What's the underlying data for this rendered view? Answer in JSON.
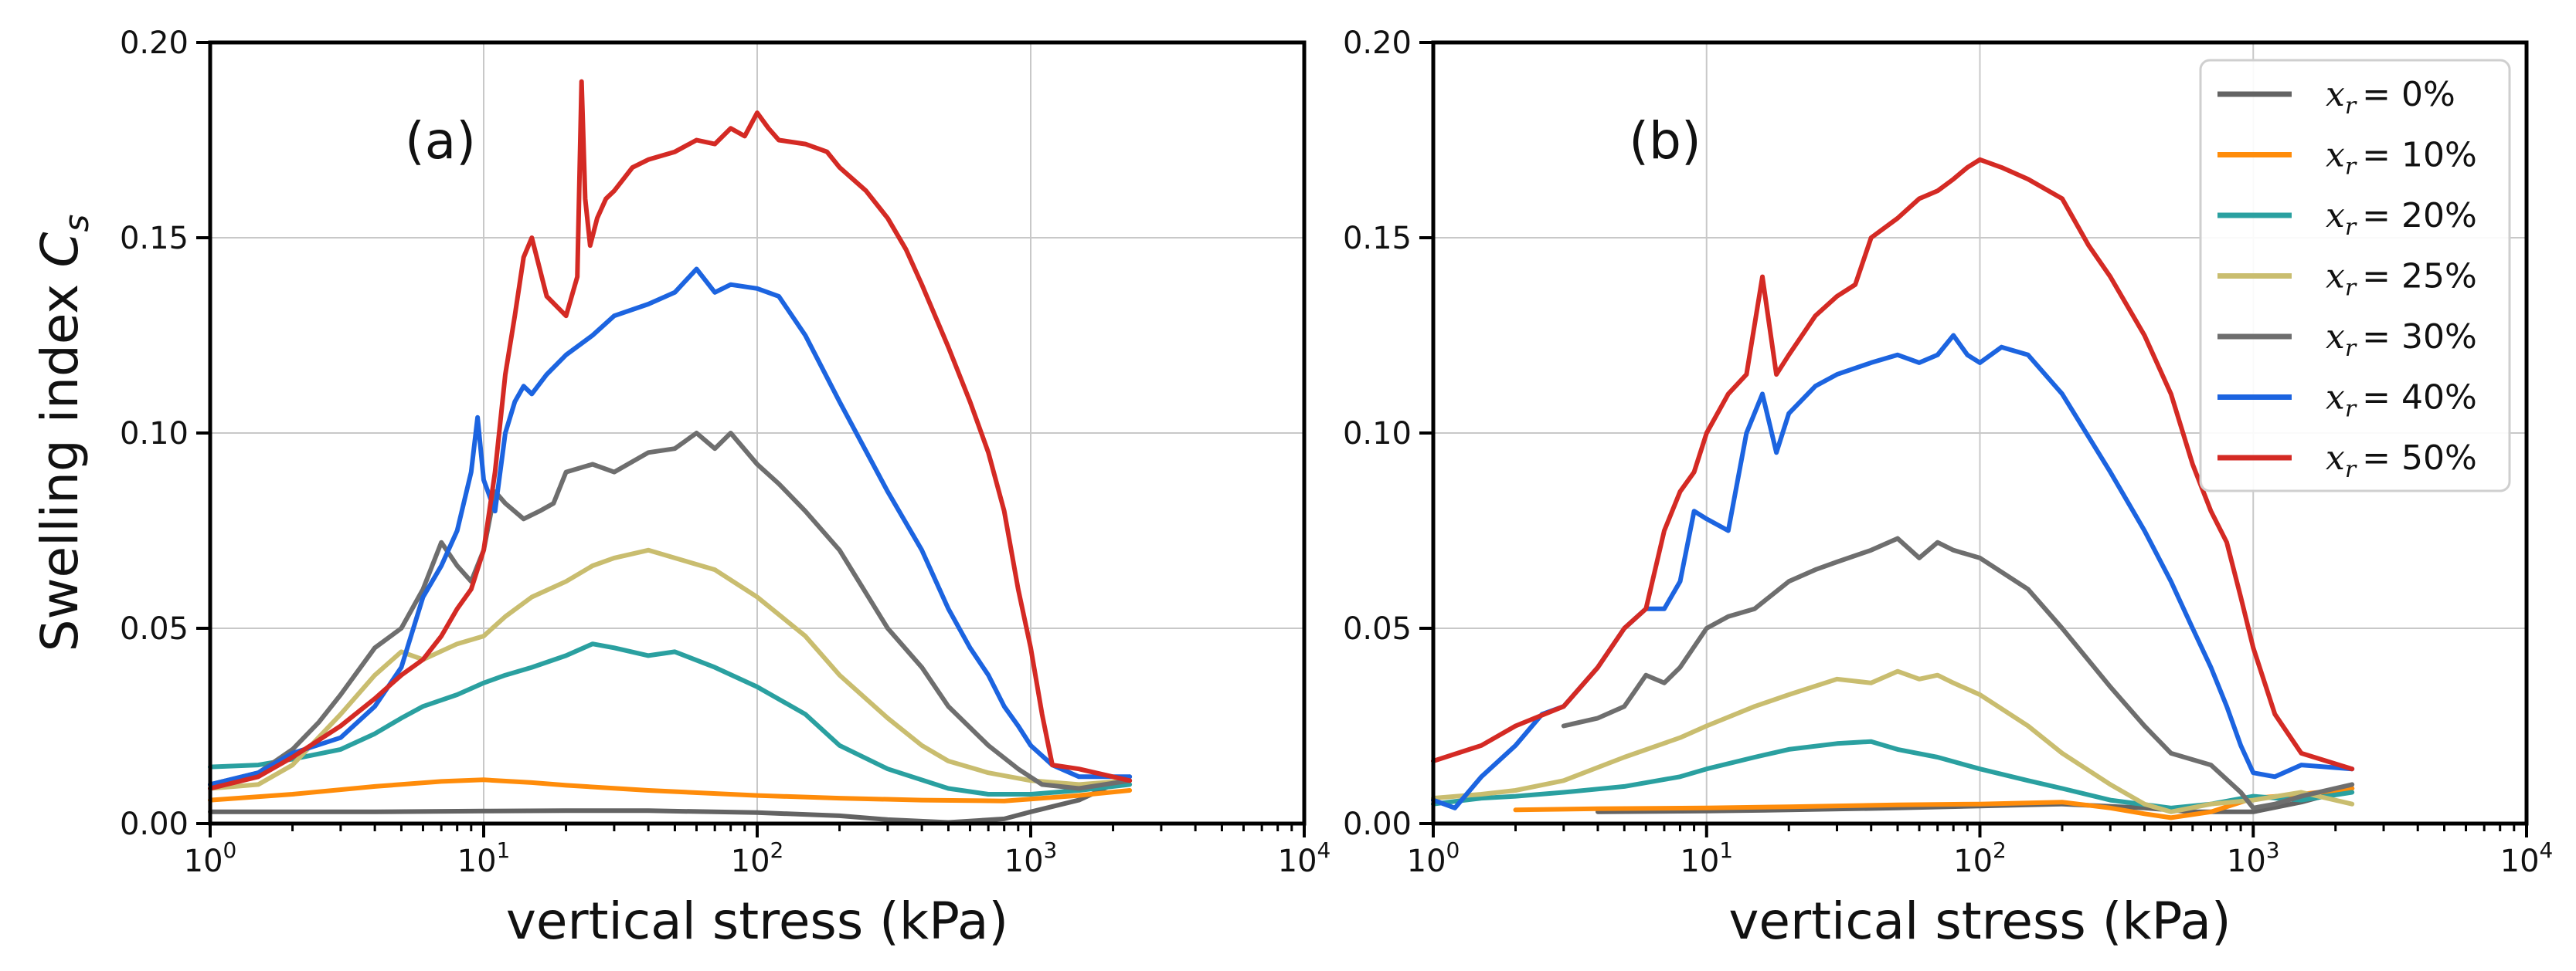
{
  "chart_data": [
    {
      "type": "line",
      "panel_label": "(a)",
      "xlabel": "vertical stress (kPa)",
      "ylabel": "Swelling index",
      "ylabel_symbol": "C",
      "ylabel_subscript": "s",
      "xscale": "log",
      "xlim": [
        1,
        10000
      ],
      "ylim": [
        0,
        0.2
      ],
      "grid": true,
      "x_ticks": [
        {
          "base": "10",
          "exp": "0"
        },
        {
          "base": "10",
          "exp": "1"
        },
        {
          "base": "10",
          "exp": "2"
        },
        {
          "base": "10",
          "exp": "3"
        },
        {
          "base": "10",
          "exp": "4"
        }
      ],
      "y_ticks": [
        "0.00",
        "0.05",
        "0.10",
        "0.15",
        "0.20"
      ],
      "series": [
        {
          "name": "x_r = 0%",
          "color": "#636363",
          "x": [
            1,
            2,
            4,
            10,
            20,
            40,
            100,
            200,
            300,
            500,
            800,
            1000,
            1500,
            2300
          ],
          "y": [
            0.003,
            0.003,
            0.003,
            0.0032,
            0.0033,
            0.0033,
            0.0028,
            0.002,
            0.001,
            0.0003,
            0.0012,
            0.003,
            0.006,
            0.012
          ]
        },
        {
          "name": "x_r = 10%",
          "color": "#ff8c0a",
          "x": [
            1,
            2,
            4,
            7,
            10,
            15,
            20,
            40,
            100,
            200,
            400,
            800,
            1500,
            2300
          ],
          "y": [
            0.006,
            0.0075,
            0.0095,
            0.0108,
            0.0112,
            0.0105,
            0.0098,
            0.0085,
            0.0072,
            0.0065,
            0.006,
            0.0058,
            0.0072,
            0.0085
          ]
        },
        {
          "name": "x_r = 20%",
          "color": "#2aa0a0",
          "x": [
            1,
            1.5,
            2,
            3,
            4,
            5,
            6,
            8,
            10,
            12,
            15,
            20,
            25,
            30,
            40,
            50,
            70,
            100,
            150,
            200,
            300,
            500,
            700,
            1000,
            1500,
            2300
          ],
          "y": [
            0.0145,
            0.015,
            0.0165,
            0.019,
            0.023,
            0.027,
            0.03,
            0.033,
            0.036,
            0.038,
            0.04,
            0.043,
            0.046,
            0.045,
            0.043,
            0.044,
            0.04,
            0.035,
            0.028,
            0.02,
            0.014,
            0.009,
            0.0075,
            0.0075,
            0.0085,
            0.01
          ]
        },
        {
          "name": "x_r = 25%",
          "color": "#c9bd6f",
          "x": [
            1,
            1.5,
            2,
            3,
            4,
            5,
            6,
            8,
            10,
            12,
            15,
            20,
            25,
            30,
            40,
            50,
            70,
            100,
            150,
            200,
            300,
            400,
            500,
            700,
            1000,
            1500,
            2300
          ],
          "y": [
            0.009,
            0.01,
            0.015,
            0.028,
            0.038,
            0.044,
            0.042,
            0.046,
            0.048,
            0.053,
            0.058,
            0.062,
            0.066,
            0.068,
            0.07,
            0.068,
            0.065,
            0.058,
            0.048,
            0.038,
            0.027,
            0.02,
            0.016,
            0.013,
            0.011,
            0.01,
            0.011
          ]
        },
        {
          "name": "x_r = 30%",
          "color": "#6e6e6e",
          "x": [
            1,
            1.5,
            2,
            2.5,
            3,
            4,
            5,
            6,
            7,
            8,
            9,
            10,
            11,
            12,
            14,
            16,
            18,
            20,
            25,
            30,
            40,
            50,
            60,
            70,
            80,
            100,
            120,
            150,
            200,
            300,
            400,
            500,
            700,
            900,
            1100,
            1500,
            2300
          ],
          "y": [
            0.01,
            0.013,
            0.019,
            0.026,
            0.033,
            0.045,
            0.05,
            0.06,
            0.072,
            0.066,
            0.062,
            0.07,
            0.085,
            0.082,
            0.078,
            0.08,
            0.082,
            0.09,
            0.092,
            0.09,
            0.095,
            0.096,
            0.1,
            0.096,
            0.1,
            0.092,
            0.087,
            0.08,
            0.07,
            0.05,
            0.04,
            0.03,
            0.02,
            0.014,
            0.01,
            0.009,
            0.011
          ]
        },
        {
          "name": "x_r = 40%",
          "color": "#1c64e0",
          "x": [
            1,
            1.5,
            2,
            3,
            4,
            5,
            6,
            7,
            8,
            9,
            9.5,
            10,
            11,
            12,
            13,
            14,
            15,
            17,
            20,
            25,
            30,
            40,
            50,
            60,
            70,
            80,
            100,
            120,
            150,
            200,
            300,
            400,
            500,
            600,
            700,
            800,
            900,
            1000,
            1200,
            1500,
            2300
          ],
          "y": [
            0.01,
            0.013,
            0.018,
            0.022,
            0.03,
            0.04,
            0.058,
            0.066,
            0.075,
            0.09,
            0.104,
            0.088,
            0.08,
            0.1,
            0.108,
            0.112,
            0.11,
            0.115,
            0.12,
            0.125,
            0.13,
            0.133,
            0.136,
            0.142,
            0.136,
            0.138,
            0.137,
            0.135,
            0.125,
            0.108,
            0.085,
            0.07,
            0.055,
            0.045,
            0.038,
            0.03,
            0.025,
            0.02,
            0.015,
            0.012,
            0.012
          ]
        },
        {
          "name": "x_r = 50%",
          "color": "#d42a24",
          "x": [
            1,
            1.5,
            2,
            3,
            4,
            5,
            6,
            7,
            8,
            9,
            10,
            11,
            12,
            13,
            14,
            15,
            17,
            20,
            22,
            22.8,
            23.5,
            24.5,
            26,
            28,
            30,
            35,
            40,
            50,
            60,
            70,
            80,
            90,
            100,
            110,
            120,
            150,
            180,
            200,
            250,
            300,
            350,
            400,
            500,
            600,
            700,
            800,
            900,
            1000,
            1100,
            1200,
            1500,
            2300
          ],
          "y": [
            0.009,
            0.012,
            0.017,
            0.025,
            0.032,
            0.038,
            0.042,
            0.048,
            0.055,
            0.06,
            0.07,
            0.09,
            0.115,
            0.13,
            0.145,
            0.15,
            0.135,
            0.13,
            0.14,
            0.19,
            0.16,
            0.148,
            0.155,
            0.16,
            0.162,
            0.168,
            0.17,
            0.172,
            0.175,
            0.174,
            0.178,
            0.176,
            0.182,
            0.178,
            0.175,
            0.174,
            0.172,
            0.168,
            0.162,
            0.155,
            0.147,
            0.138,
            0.122,
            0.108,
            0.095,
            0.08,
            0.06,
            0.045,
            0.028,
            0.015,
            0.014,
            0.011
          ]
        }
      ]
    },
    {
      "type": "line",
      "panel_label": "(b)",
      "xlabel": "vertical stress (kPa)",
      "xscale": "log",
      "xlim": [
        1,
        10000
      ],
      "ylim": [
        0,
        0.2
      ],
      "grid": true,
      "legend": "top-right",
      "x_ticks": [
        {
          "base": "10",
          "exp": "0"
        },
        {
          "base": "10",
          "exp": "1"
        },
        {
          "base": "10",
          "exp": "2"
        },
        {
          "base": "10",
          "exp": "3"
        },
        {
          "base": "10",
          "exp": "4"
        }
      ],
      "y_ticks": [
        "0.00",
        "0.05",
        "0.10",
        "0.15",
        "0.20"
      ],
      "series": [
        {
          "name": "x_r = 0%",
          "color": "#636363",
          "x": [
            4,
            10,
            20,
            50,
            100,
            200,
            400,
            600,
            1000,
            1500,
            2300
          ],
          "y": [
            0.003,
            0.0032,
            0.0035,
            0.004,
            0.0045,
            0.005,
            0.004,
            0.003,
            0.003,
            0.0055,
            0.009
          ]
        },
        {
          "name": "x_r = 10%",
          "color": "#ff8c0a",
          "x": [
            2,
            4,
            10,
            20,
            50,
            100,
            200,
            300,
            400,
            500,
            700,
            1000,
            1500,
            2300
          ],
          "y": [
            0.0035,
            0.0038,
            0.004,
            0.0043,
            0.0048,
            0.005,
            0.0055,
            0.004,
            0.0025,
            0.0015,
            0.003,
            0.0065,
            0.0075,
            0.009
          ]
        },
        {
          "name": "x_r = 20%",
          "color": "#2aa0a0",
          "x": [
            1,
            1.5,
            2,
            3,
            5,
            8,
            10,
            15,
            20,
            30,
            40,
            50,
            70,
            100,
            150,
            200,
            300,
            500,
            700,
            1000,
            1500,
            2300
          ],
          "y": [
            0.005,
            0.0065,
            0.007,
            0.008,
            0.0095,
            0.012,
            0.014,
            0.017,
            0.019,
            0.0205,
            0.021,
            0.019,
            0.017,
            0.014,
            0.011,
            0.009,
            0.006,
            0.004,
            0.005,
            0.007,
            0.006,
            0.008
          ]
        },
        {
          "name": "x_r = 25%",
          "color": "#c9bd6f",
          "x": [
            1,
            1.5,
            2,
            3,
            5,
            8,
            10,
            15,
            20,
            30,
            40,
            50,
            60,
            70,
            80,
            100,
            150,
            200,
            300,
            400,
            500,
            700,
            1000,
            1500,
            2300
          ],
          "y": [
            0.0065,
            0.0075,
            0.0085,
            0.011,
            0.017,
            0.022,
            0.025,
            0.03,
            0.033,
            0.037,
            0.036,
            0.039,
            0.037,
            0.038,
            0.036,
            0.033,
            0.025,
            0.018,
            0.01,
            0.005,
            0.003,
            0.005,
            0.006,
            0.008,
            0.005
          ]
        },
        {
          "name": "x_r = 30%",
          "color": "#6e6e6e",
          "x": [
            3,
            4,
            5,
            6,
            7,
            8,
            10,
            12,
            15,
            20,
            25,
            30,
            40,
            50,
            60,
            70,
            80,
            100,
            150,
            200,
            300,
            400,
            500,
            700,
            900,
            1000,
            1200,
            1500,
            2300
          ],
          "y": [
            0.025,
            0.027,
            0.03,
            0.038,
            0.036,
            0.04,
            0.05,
            0.053,
            0.055,
            0.062,
            0.065,
            0.067,
            0.07,
            0.073,
            0.068,
            0.072,
            0.07,
            0.068,
            0.06,
            0.05,
            0.035,
            0.025,
            0.018,
            0.015,
            0.008,
            0.004,
            0.005,
            0.007,
            0.01
          ]
        },
        {
          "name": "x_r = 40%",
          "color": "#1c64e0",
          "x": [
            1,
            1.2,
            1.5,
            2,
            2.5,
            3,
            4,
            5,
            6,
            7,
            8,
            9,
            10,
            12,
            14,
            16,
            18,
            20,
            25,
            30,
            40,
            50,
            60,
            70,
            80,
            90,
            100,
            120,
            150,
            200,
            300,
            400,
            500,
            600,
            700,
            800,
            900,
            1000,
            1200,
            1500,
            2300
          ],
          "y": [
            0.006,
            0.004,
            0.012,
            0.02,
            0.028,
            0.03,
            0.04,
            0.05,
            0.055,
            0.055,
            0.062,
            0.08,
            0.078,
            0.075,
            0.1,
            0.11,
            0.095,
            0.105,
            0.112,
            0.115,
            0.118,
            0.12,
            0.118,
            0.12,
            0.125,
            0.12,
            0.118,
            0.122,
            0.12,
            0.11,
            0.09,
            0.075,
            0.062,
            0.05,
            0.04,
            0.03,
            0.02,
            0.013,
            0.012,
            0.015,
            0.014
          ]
        },
        {
          "name": "x_r = 50%",
          "color": "#d42a24",
          "x": [
            1,
            1.5,
            2,
            3,
            4,
            5,
            6,
            7,
            8,
            9,
            10,
            12,
            14,
            16,
            18,
            20,
            25,
            30,
            35,
            40,
            50,
            60,
            70,
            80,
            90,
            100,
            120,
            150,
            200,
            250,
            300,
            400,
            500,
            600,
            700,
            800,
            900,
            1000,
            1200,
            1500,
            2300
          ],
          "y": [
            0.016,
            0.02,
            0.025,
            0.03,
            0.04,
            0.05,
            0.055,
            0.075,
            0.085,
            0.09,
            0.1,
            0.11,
            0.115,
            0.14,
            0.115,
            0.12,
            0.13,
            0.135,
            0.138,
            0.15,
            0.155,
            0.16,
            0.162,
            0.165,
            0.168,
            0.17,
            0.168,
            0.165,
            0.16,
            0.148,
            0.14,
            0.125,
            0.11,
            0.092,
            0.08,
            0.072,
            0.058,
            0.045,
            0.028,
            0.018,
            0.014
          ]
        }
      ]
    }
  ],
  "legend": {
    "entries": [
      {
        "symbol": "x",
        "subscript": "r",
        "value": "= 0%",
        "color": "#636363"
      },
      {
        "symbol": "x",
        "subscript": "r",
        "value": "= 10%",
        "color": "#ff8c0a"
      },
      {
        "symbol": "x",
        "subscript": "r",
        "value": "= 20%",
        "color": "#2aa0a0"
      },
      {
        "symbol": "x",
        "subscript": "r",
        "value": "= 25%",
        "color": "#c9bd6f"
      },
      {
        "symbol": "x",
        "subscript": "r",
        "value": "= 30%",
        "color": "#6e6e6e"
      },
      {
        "symbol": "x",
        "subscript": "r",
        "value": "= 40%",
        "color": "#1c64e0"
      },
      {
        "symbol": "x",
        "subscript": "r",
        "value": "= 50%",
        "color": "#d42a24"
      }
    ]
  }
}
